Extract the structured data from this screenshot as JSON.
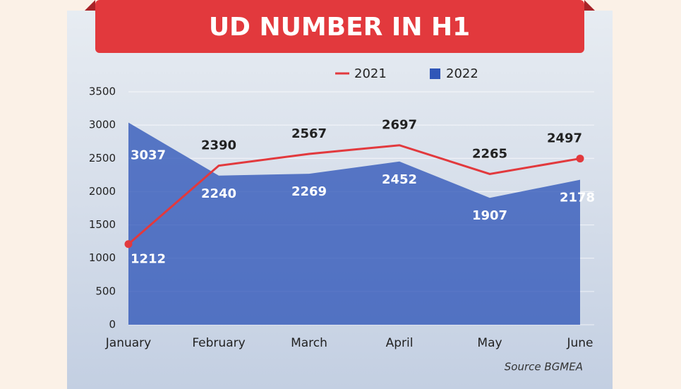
{
  "chart_data": {
    "type": "line",
    "title": "UD NUMBER IN H1",
    "source": "Source BGMEA",
    "categories": [
      "January",
      "February",
      "March",
      "April",
      "May",
      "June"
    ],
    "series": [
      {
        "name": "2021",
        "type": "line",
        "color": "#e2393d",
        "values": [
          1212,
          2390,
          2567,
          2697,
          2265,
          2497
        ]
      },
      {
        "name": "2022",
        "type": "area",
        "color": "#3056b8",
        "values": [
          3037,
          2240,
          2269,
          2452,
          1907,
          2178
        ]
      }
    ],
    "ylim": [
      0,
      3500
    ],
    "yticks": [
      0,
      500,
      1000,
      1500,
      2000,
      2500,
      3000,
      3500
    ],
    "grid": true
  }
}
